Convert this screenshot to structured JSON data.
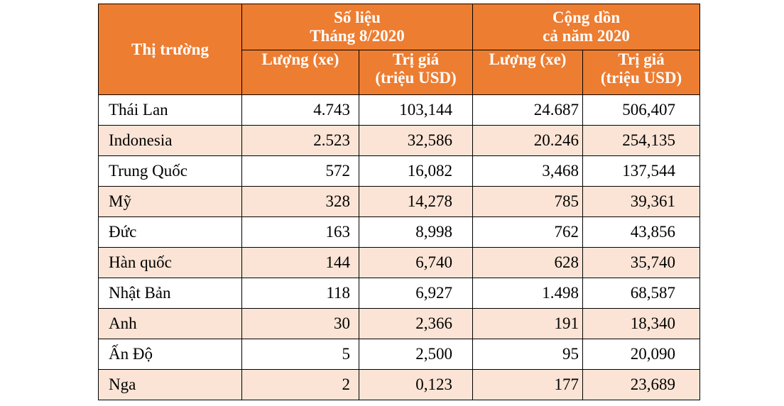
{
  "table": {
    "header": {
      "market": "Thị trường",
      "group1": [
        "Số liệu",
        "Tháng 8/2020"
      ],
      "group2": [
        "Cộng dồn",
        "cả năm 2020"
      ],
      "sub": [
        [
          "Lượng (xe)"
        ],
        [
          "Trị giá",
          "(triệu USD)"
        ],
        [
          "Lượng (xe)"
        ],
        [
          "Trị giá",
          "(triệu USD)"
        ]
      ]
    },
    "rows": [
      [
        "Thái Lan",
        "4.743",
        "103,144",
        "24.687",
        "506,407"
      ],
      [
        "Indonesia",
        "2.523",
        "32,586",
        "20.246",
        "254,135"
      ],
      [
        "Trung Quốc",
        "572",
        "16,082",
        "3,468",
        "137,544"
      ],
      [
        "Mỹ",
        "328",
        "14,278",
        "785",
        "39,361"
      ],
      [
        "Đức",
        "163",
        "8,998",
        "762",
        "43,856"
      ],
      [
        "Hàn quốc",
        "144",
        "6,740",
        "628",
        "35,740"
      ],
      [
        "Nhật Bản",
        "118",
        "6,927",
        "1.498",
        "68,587"
      ],
      [
        "Anh",
        "30",
        "2,366",
        "191",
        "18,340"
      ],
      [
        "Ấn Độ",
        "5",
        "2,500",
        "95",
        "20,090"
      ],
      [
        "Nga",
        "2",
        "0,123",
        "177",
        "23,689"
      ]
    ]
  }
}
